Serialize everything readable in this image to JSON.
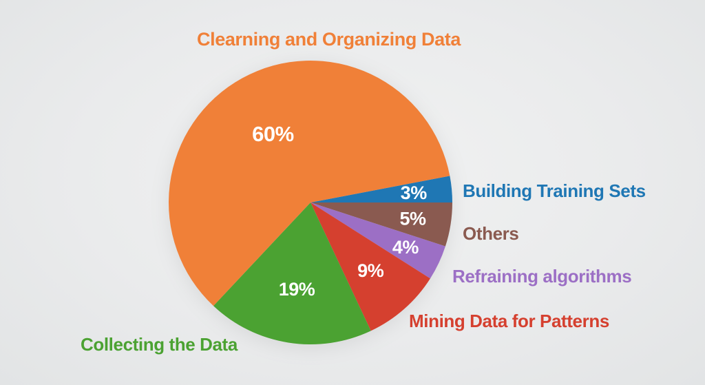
{
  "chart_data": {
    "type": "pie",
    "title": "Clearning and Organizing Data",
    "units": "percent",
    "start_angle_deg": 10.8,
    "direction": "clockwise",
    "label_layout": "around",
    "legend": "none",
    "value_label_color": "#FFFFFF",
    "background_color": "#EAEBEC",
    "slices": [
      {
        "label": "Building Training Sets",
        "value": 3,
        "pct_label": "3%",
        "color": "#1F77B4",
        "label_r": 0.73
      },
      {
        "label": "Others",
        "value": 5,
        "pct_label": "5%",
        "color": "#8A5A50",
        "label_r": 0.73
      },
      {
        "label": "Refraining algorithms",
        "value": 4,
        "pct_label": "4%",
        "color": "#9C6FC5",
        "label_r": 0.74
      },
      {
        "label": "Mining Data for Patterns",
        "value": 9,
        "pct_label": "9%",
        "color": "#D5402F",
        "label_r": 0.64
      },
      {
        "label": "Collecting the Data",
        "value": 19,
        "pct_label": "19%",
        "color": "#4BA232",
        "label_r": 0.62
      },
      {
        "label": "Clearning and Organizing Data",
        "value": 60,
        "pct_label": "60%",
        "color": "#F08038",
        "label_r": 0.55
      }
    ]
  }
}
